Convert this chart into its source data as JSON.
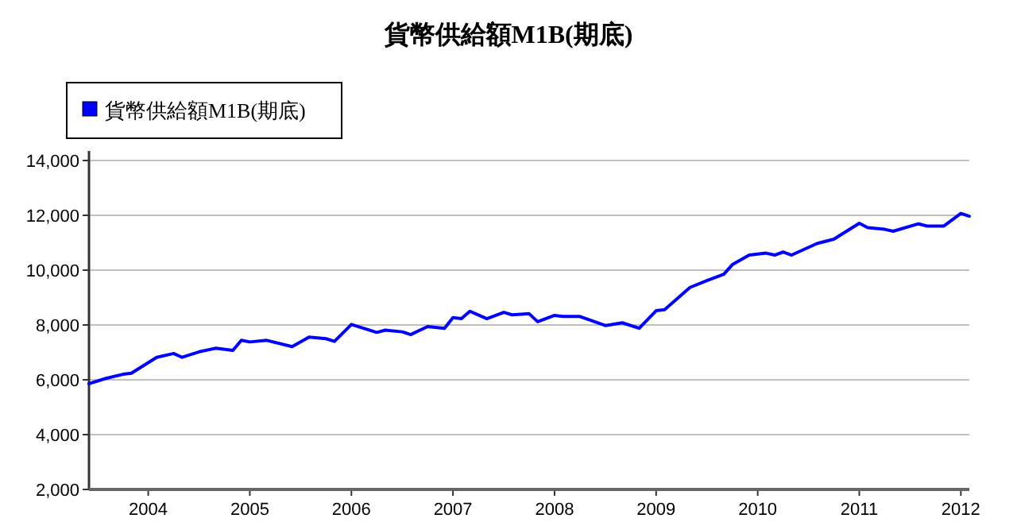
{
  "chart_data": {
    "type": "line",
    "title": "貨幣供給額M1B(期底)",
    "x": [
      "2003-06",
      "2003-08",
      "2003-10",
      "2003-11",
      "2004-02",
      "2004-04",
      "2004-05",
      "2004-07",
      "2004-09",
      "2004-11",
      "2004-12",
      "2005-01",
      "2005-03",
      "2005-06",
      "2005-08",
      "2005-10",
      "2005-11",
      "2006-01",
      "2006-04",
      "2006-05",
      "2006-07",
      "2006-08",
      "2006-10",
      "2006-12",
      "2007-01",
      "2007-02",
      "2007-03",
      "2007-05",
      "2007-07",
      "2007-08",
      "2007-10",
      "2007-11",
      "2008-01",
      "2008-02",
      "2008-04",
      "2008-07",
      "2008-09",
      "2008-11",
      "2009-01",
      "2009-02",
      "2009-05",
      "2009-07",
      "2009-09",
      "2009-10",
      "2009-12",
      "2010-02",
      "2010-03",
      "2010-04",
      "2010-05",
      "2010-08",
      "2010-10",
      "2011-01",
      "2011-02",
      "2011-04",
      "2011-05",
      "2011-08",
      "2011-09",
      "2011-11",
      "2012-01",
      "2012-02"
    ],
    "series": [
      {
        "name": "貨幣供給額M1B(期底)",
        "color": "#0000ff",
        "values": [
          5860,
          6050,
          6200,
          6240,
          6820,
          6960,
          6820,
          7020,
          7150,
          7070,
          7440,
          7380,
          7440,
          7210,
          7560,
          7500,
          7400,
          8020,
          7730,
          7810,
          7750,
          7650,
          7940,
          7880,
          8270,
          8230,
          8500,
          8230,
          8460,
          8370,
          8410,
          8120,
          8350,
          8310,
          8310,
          7980,
          8080,
          7880,
          8520,
          8560,
          9370,
          9620,
          9850,
          10200,
          10550,
          10620,
          10550,
          10660,
          10550,
          10970,
          11130,
          11710,
          11550,
          11490,
          11420,
          11690,
          11610,
          11610,
          12070,
          11970
        ]
      }
    ],
    "xlim": [
      "2003-06",
      "2012-02"
    ],
    "xticks": [
      "2004",
      "2005",
      "2006",
      "2007",
      "2008",
      "2009",
      "2010",
      "2011",
      "2012"
    ],
    "ylim": [
      2000,
      14000
    ],
    "yticks": [
      {
        "value": 2000,
        "label": "2,000"
      },
      {
        "value": 4000,
        "label": "4,000"
      },
      {
        "value": 6000,
        "label": "6,000"
      },
      {
        "value": 8000,
        "label": "8,000"
      },
      {
        "value": 10000,
        "label": "10,000"
      },
      {
        "value": 12000,
        "label": "12,000"
      },
      {
        "value": 14000,
        "label": "14,000"
      }
    ],
    "grid": "y",
    "legend": "top left",
    "marker": "none",
    "line_style": "solid"
  }
}
